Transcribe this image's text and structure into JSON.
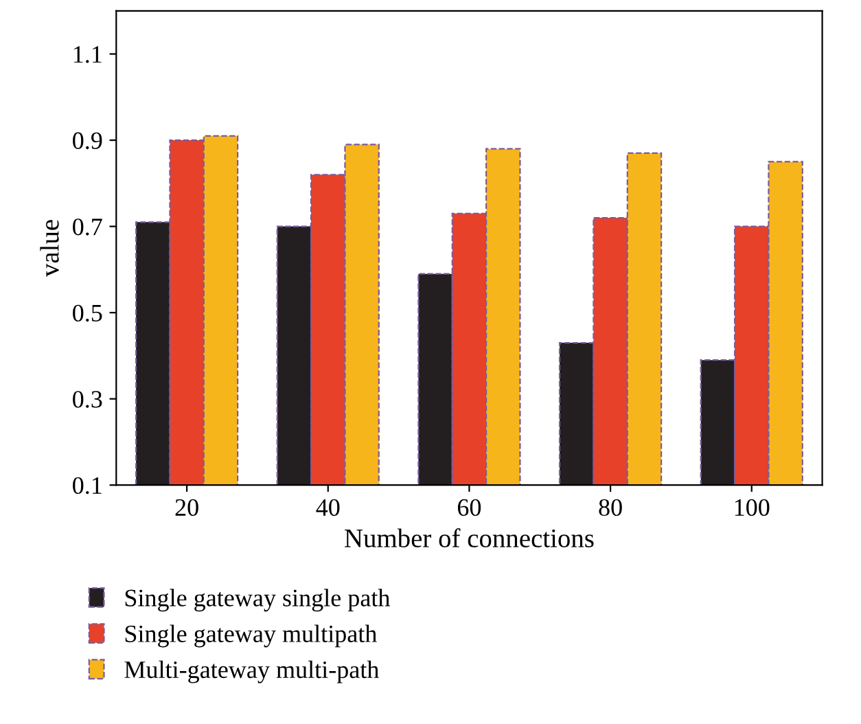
{
  "chart_data": {
    "type": "bar",
    "xlabel": "Number of connections",
    "ylabel": "value",
    "categories": [
      "20",
      "40",
      "60",
      "80",
      "100"
    ],
    "series": [
      {
        "name": "Single gateway single path",
        "color": "#231f20",
        "values": [
          0.71,
          0.7,
          0.59,
          0.43,
          0.39
        ]
      },
      {
        "name": "Single gateway multipath",
        "color": "#e8412a",
        "values": [
          0.9,
          0.82,
          0.73,
          0.72,
          0.7
        ]
      },
      {
        "name": "Multi-gateway multi-path",
        "color": "#f7b51c",
        "values": [
          0.91,
          0.89,
          0.88,
          0.87,
          0.85
        ]
      }
    ],
    "ylim": [
      0.1,
      1.2
    ],
    "yticks": [
      0.1,
      0.3,
      0.5,
      0.7,
      0.9,
      1.1
    ],
    "grid": false,
    "legend": "bottom"
  }
}
